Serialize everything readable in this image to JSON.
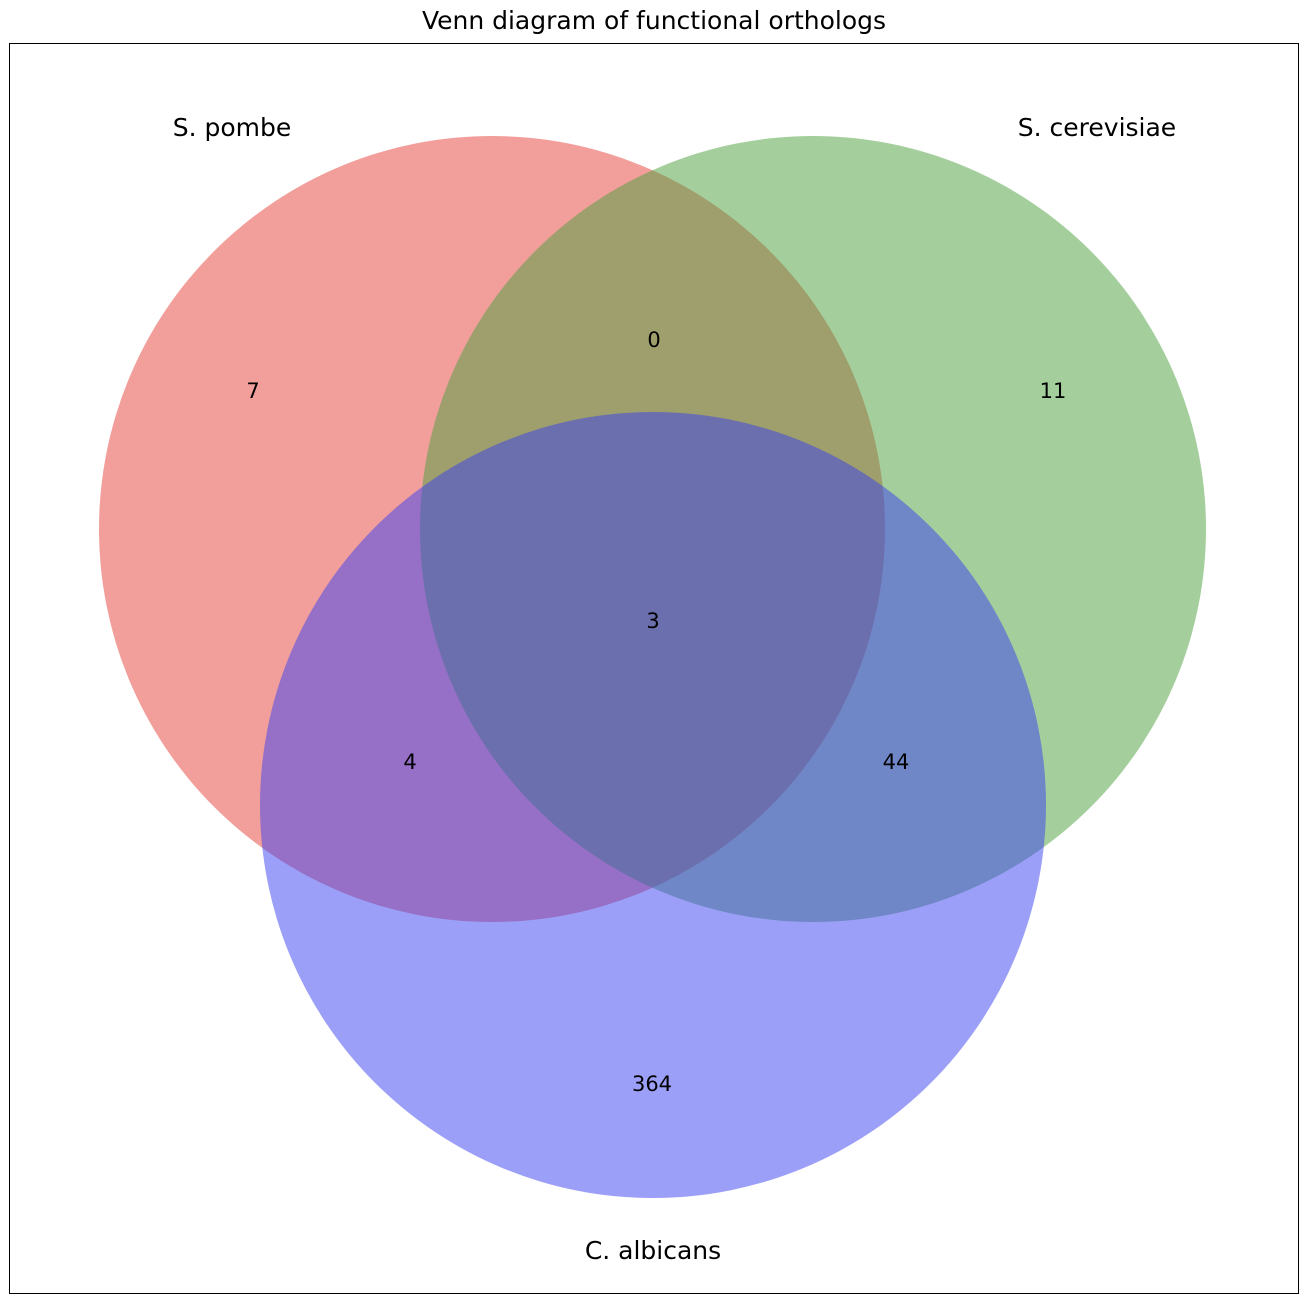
{
  "title": "Venn diagram of functional orthologs",
  "sets": {
    "a": {
      "label": "S. pombe",
      "color": "#e8504a"
    },
    "b": {
      "label": "S. cerevisiae",
      "color": "#4a9f3c"
    },
    "c": {
      "label": "C. albicans",
      "color": "#3a3ff0"
    }
  },
  "regions": {
    "a_only": "7",
    "b_only": "11",
    "ab": "0",
    "abc": "3",
    "ac": "4",
    "bc": "44",
    "c_only": "364"
  }
}
